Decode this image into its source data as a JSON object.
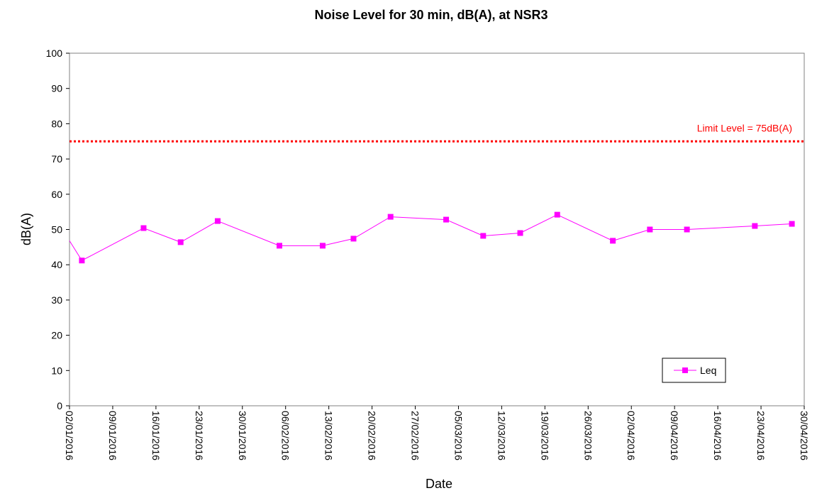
{
  "chart_data": {
    "type": "line",
    "title": "Noise Level for 30 min, dB(A), at NSR3",
    "xlabel": "Date",
    "ylabel": "dB(A)",
    "xlim": [
      "02/01/2016",
      "30/04/2016"
    ],
    "ylim": [
      0,
      100
    ],
    "y_ticks": [
      0,
      10,
      20,
      30,
      40,
      50,
      60,
      70,
      80,
      90,
      100
    ],
    "x_ticks": [
      "02/01/2016",
      "09/01/2016",
      "16/01/2016",
      "23/01/2016",
      "30/01/2016",
      "06/02/2016",
      "13/02/2016",
      "20/02/2016",
      "27/02/2016",
      "05/03/2016",
      "12/03/2016",
      "19/03/2016",
      "26/03/2016",
      "02/04/2016",
      "09/04/2016",
      "16/04/2016",
      "23/04/2016",
      "30/04/2016"
    ],
    "grid": false,
    "legend_position": "bottom-right",
    "series": [
      {
        "name": "Leq",
        "color": "#ff00ff",
        "marker": "square",
        "points": [
          {
            "x": "04/01/2016",
            "y": 41.2
          },
          {
            "x": "14/01/2016",
            "y": 50.4
          },
          {
            "x": "20/01/2016",
            "y": 46.4
          },
          {
            "x": "26/01/2016",
            "y": 52.4
          },
          {
            "x": "05/02/2016",
            "y": 45.4
          },
          {
            "x": "12/02/2016",
            "y": 45.4
          },
          {
            "x": "17/02/2016",
            "y": 47.4
          },
          {
            "x": "23/02/2016",
            "y": 53.6
          },
          {
            "x": "03/03/2016",
            "y": 52.8
          },
          {
            "x": "09/03/2016",
            "y": 48.2
          },
          {
            "x": "15/03/2016",
            "y": 49.0
          },
          {
            "x": "21/03/2016",
            "y": 54.2
          },
          {
            "x": "30/03/2016",
            "y": 46.8
          },
          {
            "x": "05/04/2016",
            "y": 50.0
          },
          {
            "x": "11/04/2016",
            "y": 50.0
          },
          {
            "x": "22/04/2016",
            "y": 51.0
          },
          {
            "x": "28/04/2016",
            "y": 51.6
          }
        ]
      }
    ],
    "limit_line": {
      "value": 75,
      "label": "Limit Level = 75dB(A)",
      "color": "#ff0000",
      "style": "dotted"
    }
  }
}
